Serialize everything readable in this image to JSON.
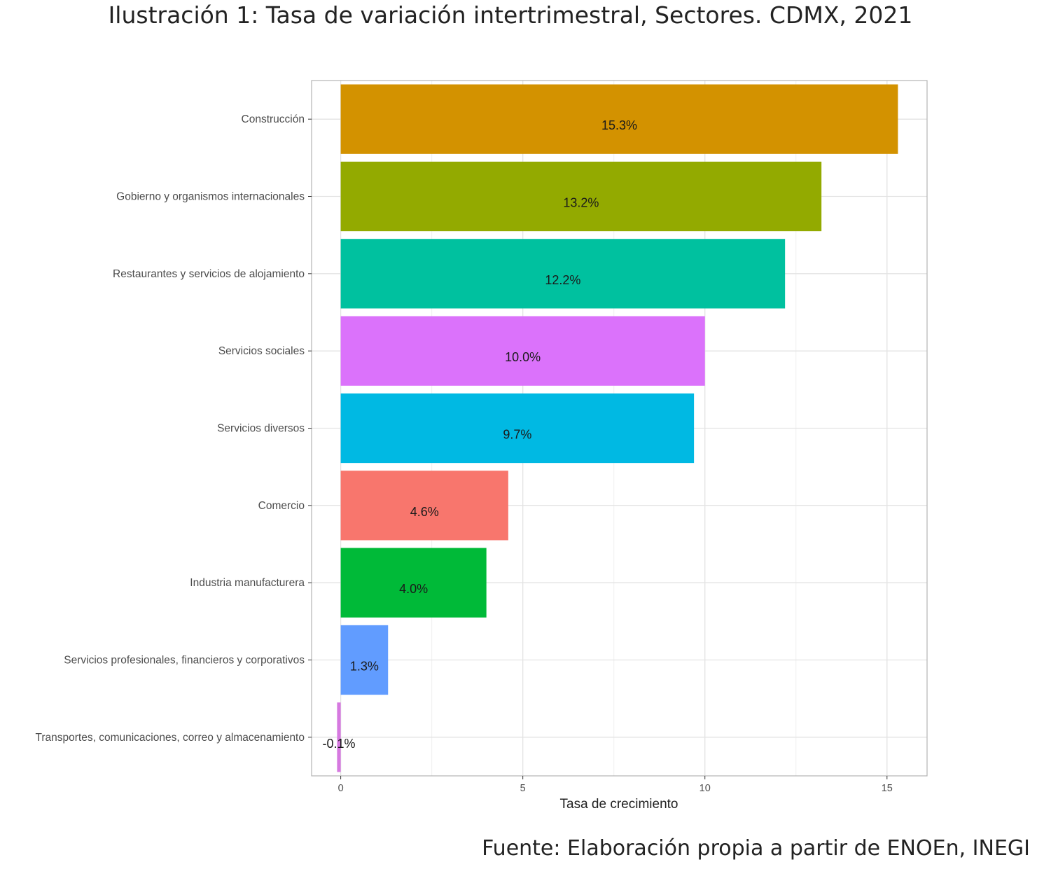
{
  "title": "Ilustración 1: Tasa de variación intertrimestral, Sectores. CDMX, 2021",
  "source": "Fuente: Elaboración propia a partir de ENOEn, INEGI",
  "chart_data": {
    "type": "bar",
    "orientation": "horizontal",
    "title": "Ilustración 1: Tasa de variación intertrimestral, Sectores. CDMX, 2021",
    "xlabel": "Tasa de crecimiento",
    "ylabel": "",
    "xlim": [
      -0.8,
      16.1
    ],
    "xticks": [
      0,
      5,
      10,
      15
    ],
    "grid": true,
    "legend": "none",
    "categories": [
      "Construcción",
      "Gobierno y organismos internacionales",
      "Restaurantes y servicios de alojamiento",
      "Servicios sociales",
      "Servicios diversos",
      "Comercio",
      "Industria manufacturera",
      "Servicios profesionales, financieros y corporativos",
      "Transportes, comunicaciones, correo y almacenamiento"
    ],
    "values": [
      15.3,
      13.2,
      12.2,
      10.0,
      9.7,
      4.6,
      4.0,
      1.3,
      -0.1
    ],
    "labels": [
      "15.3%",
      "13.2%",
      "12.2%",
      "10.0%",
      "9.7%",
      "4.6%",
      "4.0%",
      "1.3%",
      "-0.1%"
    ],
    "colors": [
      "#D39200",
      "#93AA00",
      "#00C19F",
      "#DB72FB",
      "#00B9E3",
      "#F8766D",
      "#00BA38",
      "#619CFF",
      "#D679E0"
    ]
  }
}
